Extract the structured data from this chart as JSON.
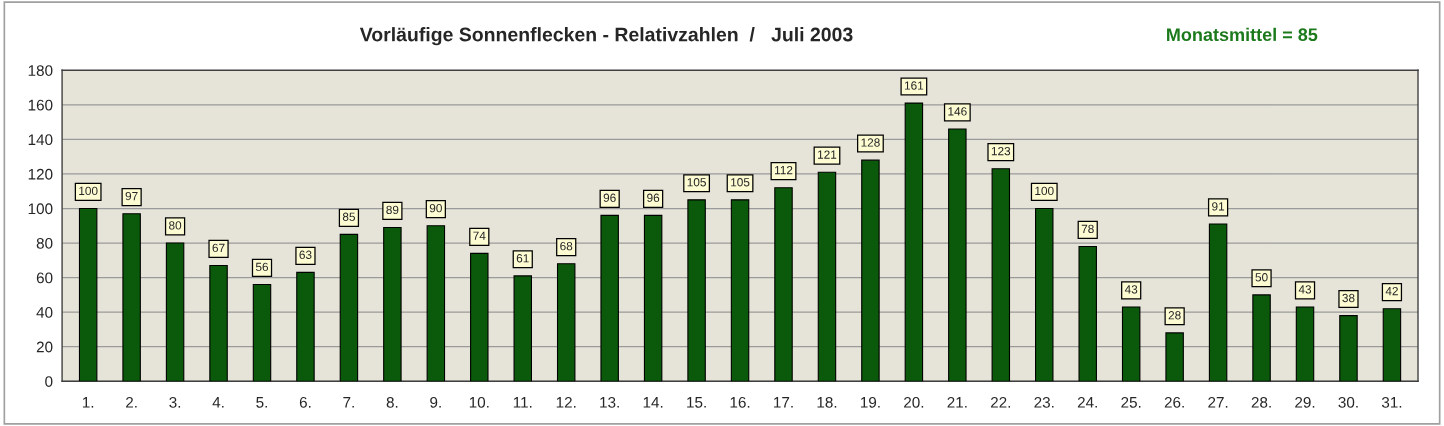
{
  "chart_data": {
    "type": "bar",
    "title": "Vorläufige Sonnenflecken - Relativzahlen  /   Juli 2003",
    "annotations": [
      "Monatsmittel = 85"
    ],
    "categories": [
      "1.",
      "2.",
      "3.",
      "4.",
      "5.",
      "6.",
      "7.",
      "8.",
      "9.",
      "10.",
      "11.",
      "12.",
      "13.",
      "14.",
      "15.",
      "16.",
      "17.",
      "18.",
      "19.",
      "20.",
      "21.",
      "22.",
      "23.",
      "24.",
      "25.",
      "26.",
      "27.",
      "28.",
      "29.",
      "30.",
      "31."
    ],
    "values": [
      100,
      97,
      80,
      67,
      56,
      63,
      85,
      89,
      90,
      74,
      61,
      68,
      96,
      96,
      105,
      105,
      112,
      121,
      128,
      161,
      146,
      123,
      100,
      78,
      43,
      28,
      91,
      50,
      43,
      38,
      42
    ],
    "color": "#0b5a0b",
    "ylim": [
      0,
      180
    ],
    "yticks": [
      0,
      20,
      40,
      60,
      80,
      100,
      120,
      140,
      160,
      180
    ],
    "grid": "y",
    "data_labels": true
  }
}
